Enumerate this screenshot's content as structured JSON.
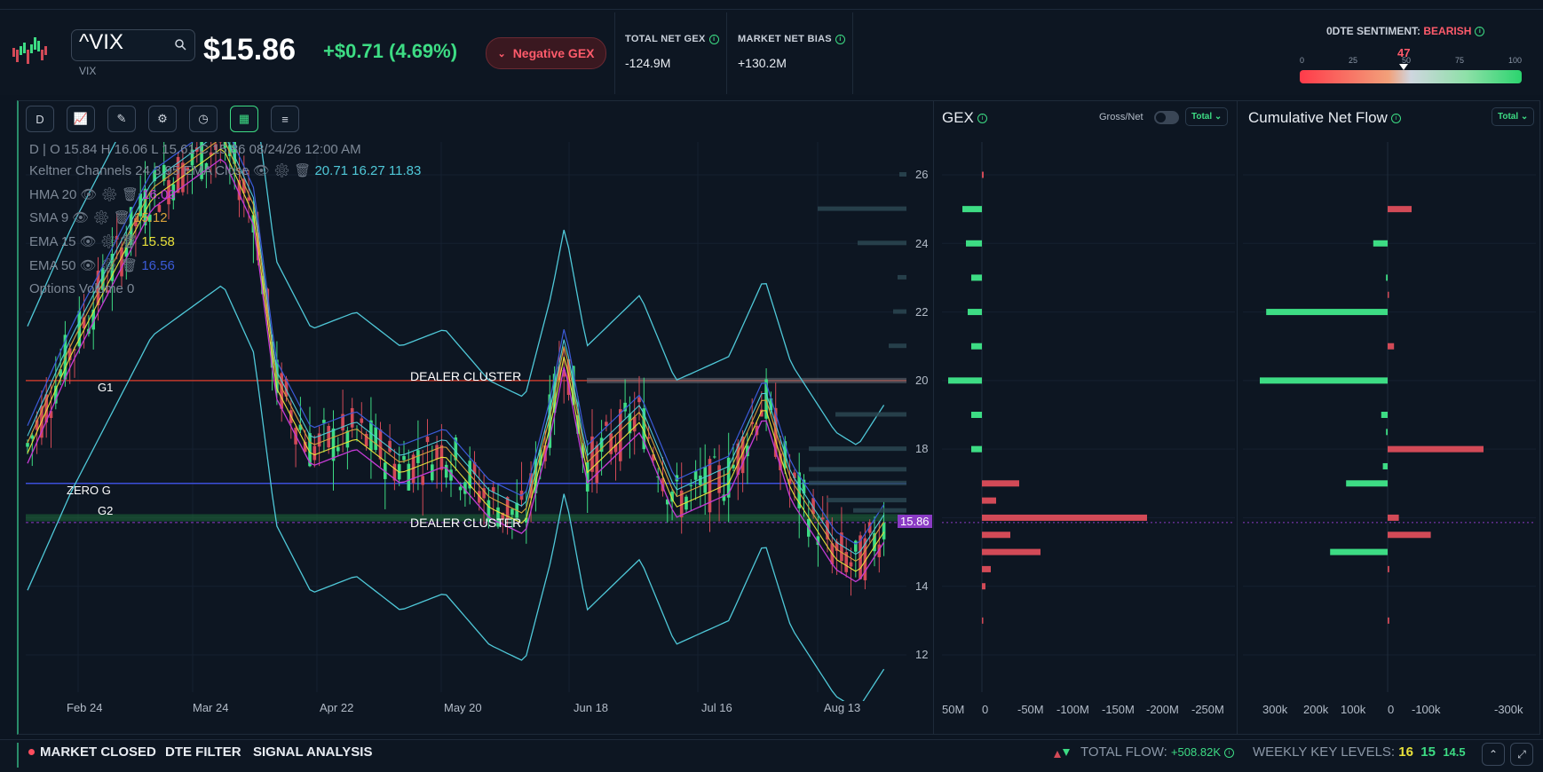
{
  "ticker": {
    "symbol": "^VIX",
    "name": "VIX",
    "price": "$15.86",
    "change": "+$0.71 (4.69%)",
    "gex_badge": "Negative GEX"
  },
  "metrics": {
    "total_net_gex_label": "TOTAL NET GEX",
    "total_net_gex_value": "-124.9M",
    "market_net_bias_label": "MARKET NET BIAS",
    "market_net_bias_value": "+130.2M"
  },
  "sentiment": {
    "label": "0DTE SENTIMENT:",
    "value": "BEARISH",
    "score": 47,
    "scale": [
      "0",
      "25",
      "50",
      "75",
      "100"
    ]
  },
  "toolbar": {
    "interval": "D"
  },
  "legend": {
    "ohlc": "D | O 15.84 H 16.06 L 15.61 C 15.86 08/24/26 12:00 AM",
    "keltner": "Keltner Channels 24 3.95 EMA Close",
    "keltner_vals": "20.71 16.27 11.83",
    "hma": "HMA 20",
    "hma_val": "16.00",
    "sma": "SMA 9",
    "sma_val": "15.12",
    "ema15": "EMA 15",
    "ema15_val": "15.58",
    "ema50": "EMA 50",
    "ema50_val": "16.56",
    "options_volume": "Options Volume 0"
  },
  "levels": {
    "g1": "G1",
    "zero_g": "ZERO G",
    "g2": "G2",
    "dealer_cluster_top": "DEALER CLUSTER",
    "dealer_cluster_bottom": "DEALER CLUSTER",
    "last": "15.86"
  },
  "x_axis": [
    "Feb 24",
    "Mar 24",
    "Apr 22",
    "May 20",
    "Jun 18",
    "Jul 16",
    "Aug 13"
  ],
  "y_axis": [
    "26",
    "24",
    "22",
    "20",
    "18",
    "14",
    "12"
  ],
  "gex_panel": {
    "title": "GEX",
    "toggle_label": "Gross/Net",
    "dropdown": "Total",
    "x_ticks": [
      "50M",
      "0",
      "-50M",
      "-100M",
      "-150M",
      "-200M",
      "-250M"
    ]
  },
  "flow_panel": {
    "title": "Cumulative Net Flow",
    "dropdown": "Total",
    "x_ticks": [
      "300k",
      "200k",
      "100k",
      "0",
      "-100k",
      "-300k"
    ]
  },
  "chart_data": [
    {
      "type": "bar",
      "title": "GEX",
      "orientation": "horizontal",
      "categories": [
        26,
        25,
        24,
        23,
        22,
        21,
        20,
        19,
        18,
        17,
        16.5,
        16,
        15.5,
        15,
        14.5,
        14,
        13
      ],
      "values": [
        -2,
        22,
        18,
        12,
        16,
        12,
        38,
        12,
        12,
        -42,
        -16,
        -186,
        -32,
        -66,
        -10,
        -4,
        -1
      ]
    },
    {
      "type": "bar",
      "title": "Cumulative Net Flow",
      "orientation": "horizontal",
      "categories": [
        25,
        24,
        23,
        22.5,
        22,
        21,
        20,
        19,
        18.5,
        18,
        17.5,
        17,
        16,
        15.5,
        15,
        14.5,
        13
      ],
      "values": [
        -75000,
        45000,
        5000,
        -3000,
        380000,
        -20000,
        400000,
        20000,
        5000,
        -300000,
        15000,
        130000,
        -35000,
        -135000,
        180000,
        -5000,
        -5000
      ]
    }
  ],
  "footer": {
    "market_status": "MARKET CLOSED",
    "dte_filter": "DTE FILTER",
    "signal_analysis": "SIGNAL ANALYSIS",
    "total_flow_label": "TOTAL FLOW:",
    "total_flow_value": "+508.82K",
    "weekly_label": "WEEKLY KEY LEVELS:",
    "wk1": "16",
    "wk2": "15",
    "wk3": "14.5"
  }
}
